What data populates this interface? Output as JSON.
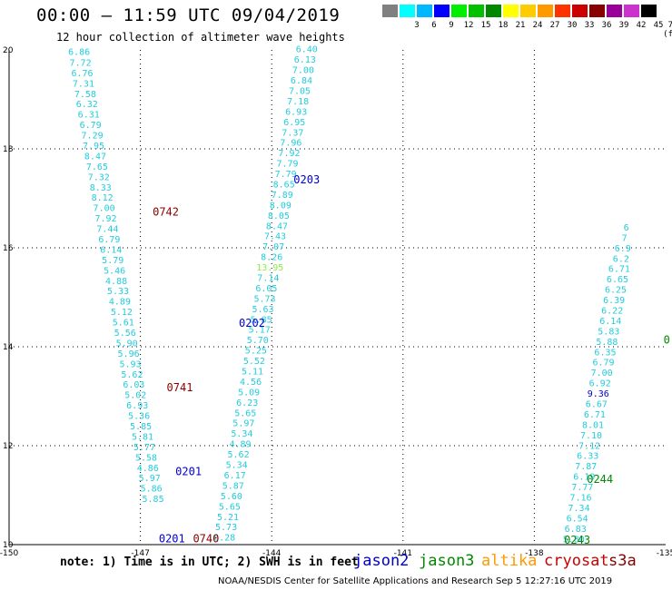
{
  "title": "00:00 – 11:59 UTC 09/04/2019",
  "subtitle": "12 hour collection of altimeter wave heights",
  "colorbar": {
    "unit": "(ft)",
    "labels": [
      "3",
      "6",
      "9",
      "12",
      "15",
      "18",
      "21",
      "24",
      "27",
      "30",
      "33",
      "36",
      "39",
      "42",
      "45",
      "70"
    ],
    "colors": [
      "#808080",
      "#00ffff",
      "#00b8ff",
      "#0000ff",
      "#00ee00",
      "#00c000",
      "#008800",
      "#ffff00",
      "#ffcc00",
      "#ff9900",
      "#ff3300",
      "#cc0000",
      "#880000",
      "#990099",
      "#cc33cc",
      "#000000"
    ]
  },
  "footer": {
    "note": "note: 1) Time is in UTC; 2) SWH is in feet",
    "missions": [
      {
        "name": "jason2",
        "color": "#0000cc"
      },
      {
        "name": "jason3",
        "color": "#008800"
      },
      {
        "name": "altika",
        "color": "#ff9900"
      },
      {
        "name": "cryosat",
        "color": "#cc0000"
      },
      {
        "name": "s3a",
        "color": "#880000"
      }
    ],
    "credit": "NOAA/NESDIS Center for Satellite Applications and Research   Sep  5 12:27:16 UTC 2019"
  },
  "chart_data": {
    "type": "scatter",
    "xlim": [
      -150,
      -135
    ],
    "ylim": [
      10,
      20
    ],
    "grid": true,
    "x_ticks": [
      "-150",
      "-147",
      "-144",
      "-141",
      "-138",
      "-135"
    ],
    "y_ticks": [
      "10",
      "12",
      "14",
      "16",
      "18",
      "20"
    ],
    "pass_labels": [
      {
        "text": "0742",
        "lon": -146.72,
        "lat": 16.65,
        "color": "#880000"
      },
      {
        "text": "0203",
        "lon": -143.5,
        "lat": 17.3,
        "color": "#0000cc"
      },
      {
        "text": "0202",
        "lon": -144.75,
        "lat": 14.4,
        "color": "#0000cc"
      },
      {
        "text": "0741",
        "lon": -146.4,
        "lat": 13.1,
        "color": "#880000"
      },
      {
        "text": "0201",
        "lon": -146.2,
        "lat": 11.4,
        "color": "#0000cc"
      },
      {
        "text": "0740",
        "lon": -145.8,
        "lat": 10.05,
        "color": "#880000"
      },
      {
        "text": "0201",
        "lon": -146.58,
        "lat": 10.05,
        "color": "#0000cc"
      },
      {
        "text": "0244",
        "lon": -136.8,
        "lat": 11.25,
        "color": "#008800"
      },
      {
        "text": "0243",
        "lon": -137.32,
        "lat": 10.02,
        "color": "#008800"
      },
      {
        "text": "0",
        "lon": -135.05,
        "lat": 14.06,
        "color": "#008800"
      }
    ],
    "series": [
      {
        "name": "cryosat",
        "color": "#22ccdd",
        "points": [
          {
            "lon": -148.4,
            "lat": 19.9,
            "v": "6.86"
          },
          {
            "lon": -148.37,
            "lat": 19.68,
            "v": "7.72"
          },
          {
            "lon": -148.33,
            "lat": 19.47,
            "v": "6.76"
          },
          {
            "lon": -148.3,
            "lat": 19.26,
            "v": "7.31"
          },
          {
            "lon": -148.26,
            "lat": 19.05,
            "v": "7.58"
          },
          {
            "lon": -148.22,
            "lat": 18.84,
            "v": "6.32"
          },
          {
            "lon": -148.18,
            "lat": 18.63,
            "v": "6.31"
          },
          {
            "lon": -148.14,
            "lat": 18.42,
            "v": "6.79"
          },
          {
            "lon": -148.1,
            "lat": 18.21,
            "v": "7.29"
          },
          {
            "lon": -148.07,
            "lat": 18.0,
            "v": "7.95"
          },
          {
            "lon": -148.03,
            "lat": 17.79,
            "v": "8.47"
          },
          {
            "lon": -147.99,
            "lat": 17.58,
            "v": "7.65"
          },
          {
            "lon": -147.95,
            "lat": 17.37,
            "v": "7.32"
          },
          {
            "lon": -147.91,
            "lat": 17.16,
            "v": "8.33"
          },
          {
            "lon": -147.87,
            "lat": 16.95,
            "v": "8.12"
          },
          {
            "lon": -147.83,
            "lat": 16.74,
            "v": "7.00"
          },
          {
            "lon": -147.79,
            "lat": 16.53,
            "v": "7.92"
          },
          {
            "lon": -147.75,
            "lat": 16.32,
            "v": "7.44"
          },
          {
            "lon": -147.71,
            "lat": 16.11,
            "v": "6.79"
          },
          {
            "lon": -147.67,
            "lat": 15.9,
            "v": "6.14"
          },
          {
            "lon": -147.63,
            "lat": 15.69,
            "v": "5.79"
          },
          {
            "lon": -147.59,
            "lat": 15.48,
            "v": "5.46"
          },
          {
            "lon": -147.55,
            "lat": 15.27,
            "v": "4.88"
          },
          {
            "lon": -147.51,
            "lat": 15.06,
            "v": "5.33"
          },
          {
            "lon": -147.47,
            "lat": 14.85,
            "v": "4.89"
          },
          {
            "lon": -147.43,
            "lat": 14.64,
            "v": "5.12"
          },
          {
            "lon": -147.39,
            "lat": 14.43,
            "v": "5.61"
          },
          {
            "lon": -147.35,
            "lat": 14.22,
            "v": "5.56"
          },
          {
            "lon": -147.31,
            "lat": 14.01,
            "v": "5.90"
          },
          {
            "lon": -147.27,
            "lat": 13.8,
            "v": "5.96"
          },
          {
            "lon": -147.23,
            "lat": 13.59,
            "v": "5.93"
          },
          {
            "lon": -147.19,
            "lat": 13.38,
            "v": "5.62"
          },
          {
            "lon": -147.15,
            "lat": 13.17,
            "v": "6.03"
          },
          {
            "lon": -147.11,
            "lat": 12.96,
            "v": "5.02"
          },
          {
            "lon": -147.07,
            "lat": 12.75,
            "v": "6.93"
          },
          {
            "lon": -147.03,
            "lat": 12.54,
            "v": "5.36"
          },
          {
            "lon": -146.99,
            "lat": 12.33,
            "v": "5.85"
          },
          {
            "lon": -146.95,
            "lat": 12.12,
            "v": "5.81"
          },
          {
            "lon": -146.91,
            "lat": 11.91,
            "v": "5.77"
          },
          {
            "lon": -146.87,
            "lat": 11.7,
            "v": "5.58"
          },
          {
            "lon": -146.83,
            "lat": 11.49,
            "v": "4.86"
          },
          {
            "lon": -146.79,
            "lat": 11.28,
            "v": "5.97"
          },
          {
            "lon": -146.75,
            "lat": 11.07,
            "v": "5.86"
          },
          {
            "lon": -146.71,
            "lat": 10.86,
            "v": "5.85"
          }
        ]
      },
      {
        "name": "jason3",
        "color": "#22ccdd",
        "points": [
          {
            "lon": -143.2,
            "lat": 19.95,
            "v": "6.40"
          },
          {
            "lon": -143.24,
            "lat": 19.74,
            "v": "6.13"
          },
          {
            "lon": -143.28,
            "lat": 19.53,
            "v": "7.00"
          },
          {
            "lon": -143.32,
            "lat": 19.32,
            "v": "6.84"
          },
          {
            "lon": -143.36,
            "lat": 19.11,
            "v": "7.05"
          },
          {
            "lon": -143.4,
            "lat": 18.9,
            "v": "7.18"
          },
          {
            "lon": -143.44,
            "lat": 18.69,
            "v": "6.93"
          },
          {
            "lon": -143.48,
            "lat": 18.48,
            "v": "6.95"
          },
          {
            "lon": -143.52,
            "lat": 18.27,
            "v": "7.37"
          },
          {
            "lon": -143.56,
            "lat": 18.06,
            "v": "7.96"
          },
          {
            "lon": -143.6,
            "lat": 17.85,
            "v": "7.92"
          },
          {
            "lon": -143.64,
            "lat": 17.64,
            "v": "7.79"
          },
          {
            "lon": -143.68,
            "lat": 17.43,
            "v": "7.79"
          },
          {
            "lon": -143.72,
            "lat": 17.22,
            "v": "8.65"
          },
          {
            "lon": -143.76,
            "lat": 17.01,
            "v": "7.89"
          },
          {
            "lon": -143.8,
            "lat": 16.8,
            "v": "8.09"
          },
          {
            "lon": -143.84,
            "lat": 16.59,
            "v": "8.05"
          },
          {
            "lon": -143.88,
            "lat": 16.38,
            "v": "8.47"
          },
          {
            "lon": -143.92,
            "lat": 16.17,
            "v": "7.43"
          },
          {
            "lon": -143.96,
            "lat": 15.96,
            "v": "7.07"
          },
          {
            "lon": -144.0,
            "lat": 15.75,
            "v": "8.26"
          },
          {
            "lon": -144.04,
            "lat": 15.54,
            "v": "13.95"
          },
          {
            "lon": -144.08,
            "lat": 15.33,
            "v": "7.14"
          },
          {
            "lon": -144.12,
            "lat": 15.12,
            "v": "6.05"
          },
          {
            "lon": -144.16,
            "lat": 14.91,
            "v": "5.73"
          },
          {
            "lon": -144.2,
            "lat": 14.7,
            "v": "5.63"
          },
          {
            "lon": -144.24,
            "lat": 14.49,
            "v": "5.85"
          },
          {
            "lon": -144.28,
            "lat": 14.28,
            "v": "5.17"
          },
          {
            "lon": -144.32,
            "lat": 14.07,
            "v": "5.70"
          },
          {
            "lon": -144.36,
            "lat": 13.86,
            "v": "5.25"
          },
          {
            "lon": -144.4,
            "lat": 13.65,
            "v": "5.52"
          },
          {
            "lon": -144.44,
            "lat": 13.44,
            "v": "5.11"
          },
          {
            "lon": -144.48,
            "lat": 13.23,
            "v": "4.56"
          },
          {
            "lon": -144.52,
            "lat": 13.02,
            "v": "5.09"
          },
          {
            "lon": -144.56,
            "lat": 12.81,
            "v": "6.23"
          },
          {
            "lon": -144.6,
            "lat": 12.6,
            "v": "5.65"
          },
          {
            "lon": -144.64,
            "lat": 12.39,
            "v": "5.97"
          },
          {
            "lon": -144.68,
            "lat": 12.18,
            "v": "5.34"
          },
          {
            "lon": -144.72,
            "lat": 11.97,
            "v": "4.89"
          },
          {
            "lon": -144.76,
            "lat": 11.76,
            "v": "5.62"
          },
          {
            "lon": -144.8,
            "lat": 11.55,
            "v": "5.34"
          },
          {
            "lon": -144.84,
            "lat": 11.34,
            "v": "6.17"
          },
          {
            "lon": -144.88,
            "lat": 11.13,
            "v": "5.87"
          },
          {
            "lon": -144.92,
            "lat": 10.92,
            "v": "5.60"
          },
          {
            "lon": -144.96,
            "lat": 10.71,
            "v": "5.65"
          },
          {
            "lon": -145.0,
            "lat": 10.5,
            "v": "5.21"
          },
          {
            "lon": -145.04,
            "lat": 10.29,
            "v": "5.73"
          },
          {
            "lon": -145.08,
            "lat": 10.08,
            "v": "6.28"
          }
        ]
      },
      {
        "name": "jason2",
        "color": "#22ccdd",
        "points": [
          {
            "lon": -137.1,
            "lat": 10.05,
            "v": "5.80"
          },
          {
            "lon": -137.06,
            "lat": 10.26,
            "v": "6.83"
          },
          {
            "lon": -137.02,
            "lat": 10.47,
            "v": "6.54"
          },
          {
            "lon": -136.98,
            "lat": 10.68,
            "v": "7.34"
          },
          {
            "lon": -136.94,
            "lat": 10.89,
            "v": "7.16"
          },
          {
            "lon": -136.9,
            "lat": 11.1,
            "v": "7.77"
          },
          {
            "lon": -136.86,
            "lat": 11.31,
            "v": "6.19"
          },
          {
            "lon": -136.82,
            "lat": 11.52,
            "v": "7.87"
          },
          {
            "lon": -136.78,
            "lat": 11.73,
            "v": "6.33"
          },
          {
            "lon": -136.74,
            "lat": 11.94,
            "v": "7.12"
          },
          {
            "lon": -136.7,
            "lat": 12.15,
            "v": "7.10"
          },
          {
            "lon": -136.66,
            "lat": 12.36,
            "v": "8.01"
          },
          {
            "lon": -136.62,
            "lat": 12.57,
            "v": "6.71"
          },
          {
            "lon": -136.58,
            "lat": 12.78,
            "v": "6.67"
          },
          {
            "lon": -136.54,
            "lat": 12.99,
            "v": "9.36"
          },
          {
            "lon": -136.5,
            "lat": 13.2,
            "v": "6.92"
          },
          {
            "lon": -136.46,
            "lat": 13.41,
            "v": "7.00"
          },
          {
            "lon": -136.42,
            "lat": 13.62,
            "v": "6.79"
          },
          {
            "lon": -136.38,
            "lat": 13.83,
            "v": "6.35"
          },
          {
            "lon": -136.34,
            "lat": 14.04,
            "v": "5.88"
          },
          {
            "lon": -136.3,
            "lat": 14.25,
            "v": "5.83"
          },
          {
            "lon": -136.26,
            "lat": 14.46,
            "v": "6.14"
          },
          {
            "lon": -136.22,
            "lat": 14.67,
            "v": "6.22"
          },
          {
            "lon": -136.18,
            "lat": 14.88,
            "v": "6.39"
          },
          {
            "lon": -136.14,
            "lat": 15.09,
            "v": "6.25"
          },
          {
            "lon": -136.1,
            "lat": 15.3,
            "v": "6.65"
          },
          {
            "lon": -136.06,
            "lat": 15.51,
            "v": "6.71"
          },
          {
            "lon": -136.02,
            "lat": 15.72,
            "v": "6.2"
          },
          {
            "lon": -135.98,
            "lat": 15.93,
            "v": "6.9"
          },
          {
            "lon": -135.94,
            "lat": 16.14,
            "v": "7"
          },
          {
            "lon": -135.9,
            "lat": 16.35,
            "v": "6"
          }
        ]
      }
    ]
  }
}
